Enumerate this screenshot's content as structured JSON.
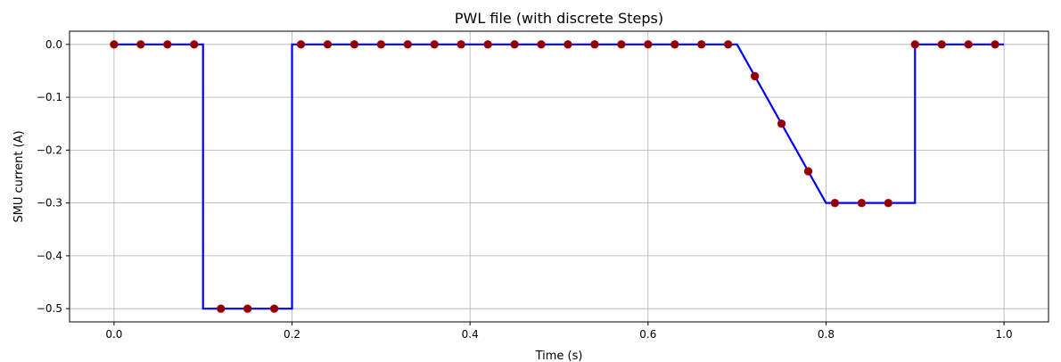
{
  "chart_data": {
    "type": "line",
    "title": "PWL file (with discrete Steps)",
    "xlabel": "Time (s)",
    "ylabel": "SMU current (A)",
    "xlim": [
      -0.05,
      1.05
    ],
    "ylim": [
      -0.525,
      0.025
    ],
    "xticks": [
      0.0,
      0.2,
      0.4,
      0.6,
      0.8,
      1.0
    ],
    "xtick_labels": [
      "0.0",
      "0.2",
      "0.4",
      "0.6",
      "0.8",
      "1.0"
    ],
    "yticks": [
      0.0,
      -0.1,
      -0.2,
      -0.3,
      -0.4,
      -0.5
    ],
    "ytick_labels": [
      "0.0",
      "−0.1",
      "−0.2",
      "−0.3",
      "−0.4",
      "−0.5"
    ],
    "grid": true,
    "series": [
      {
        "kind": "line",
        "color": "#0000ff",
        "x": [
          0.0,
          0.1,
          0.1,
          0.2,
          0.2,
          0.7,
          0.8,
          0.9,
          0.9,
          1.0
        ],
        "y": [
          0.0,
          0.0,
          -0.5,
          -0.5,
          0.0,
          0.0,
          -0.3,
          -0.3,
          0.0,
          0.0
        ]
      },
      {
        "kind": "scatter",
        "color": "#8b0000",
        "x": [
          0.0,
          0.03,
          0.06,
          0.09,
          0.12,
          0.15,
          0.18,
          0.21,
          0.24,
          0.27,
          0.3,
          0.33,
          0.36,
          0.39,
          0.42,
          0.45,
          0.48,
          0.51,
          0.54,
          0.57,
          0.6,
          0.63,
          0.66,
          0.69,
          0.72,
          0.75,
          0.78,
          0.81,
          0.84,
          0.87,
          0.9,
          0.93,
          0.96,
          0.99
        ],
        "y": [
          0.0,
          0.0,
          0.0,
          0.0,
          -0.5,
          -0.5,
          -0.5,
          0.0,
          0.0,
          0.0,
          0.0,
          0.0,
          0.0,
          0.0,
          0.0,
          0.0,
          0.0,
          0.0,
          0.0,
          0.0,
          0.0,
          0.0,
          0.0,
          0.0,
          -0.06,
          -0.15,
          -0.24,
          -0.3,
          -0.3,
          -0.3,
          0.0,
          0.0,
          0.0,
          0.0
        ]
      }
    ]
  }
}
